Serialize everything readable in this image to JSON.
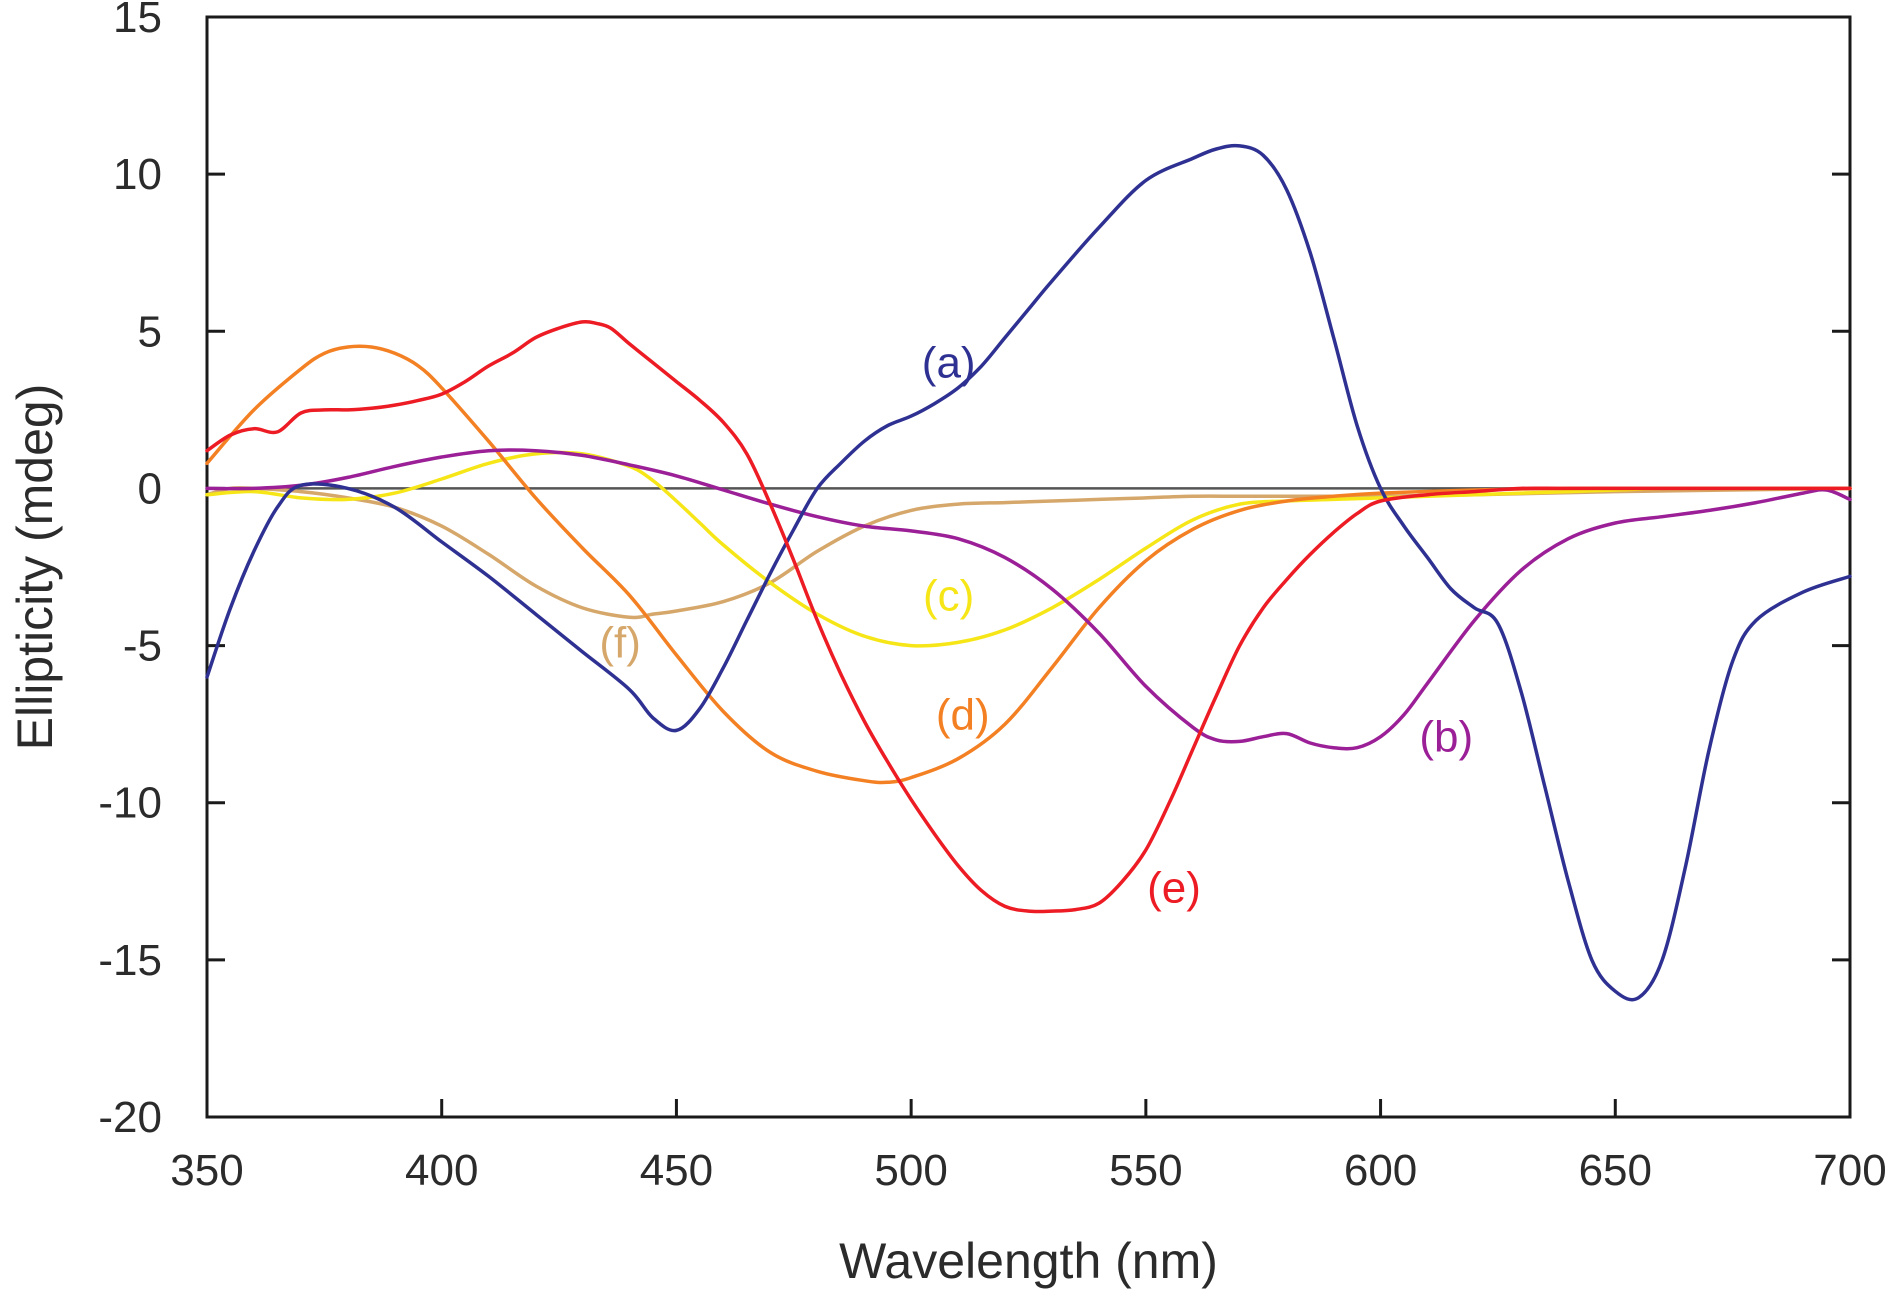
{
  "chart_data": {
    "type": "line",
    "title": "",
    "xlabel": "Wavelength (nm)",
    "ylabel": "Ellipticity (mdeg)",
    "xlim": [
      350,
      700
    ],
    "ylim": [
      -20,
      15
    ],
    "xticks": [
      350,
      400,
      450,
      500,
      550,
      600,
      650,
      700
    ],
    "yticks": [
      15,
      10,
      5,
      0,
      -5,
      -10,
      -15,
      -20
    ],
    "xtick_labels": [
      "350",
      "400",
      "450",
      "500",
      "550",
      "600",
      "650",
      "700"
    ],
    "ytick_labels": [
      "15",
      "10",
      "5",
      "0",
      "-5",
      "-10",
      "-15",
      "-20"
    ],
    "zero_line": true,
    "grid": false,
    "series": [
      {
        "name": "(a)",
        "color": "#2e3192",
        "label_at": [
          508,
          4
        ],
        "x": [
          350,
          355,
          360,
          365,
          370,
          380,
          390,
          400,
          410,
          420,
          430,
          440,
          445,
          450,
          455,
          460,
          465,
          470,
          475,
          480,
          485,
          490,
          495,
          500,
          505,
          510,
          515,
          520,
          525,
          530,
          540,
          550,
          560,
          565,
          570,
          575,
          580,
          585,
          590,
          595,
          600,
          605,
          610,
          615,
          620,
          625,
          630,
          635,
          640,
          645,
          650,
          655,
          660,
          665,
          670,
          675,
          680,
          690,
          700
        ],
        "y": [
          -6,
          -3.8,
          -2,
          -0.6,
          0.1,
          0,
          -0.6,
          -1.7,
          -2.8,
          -4,
          -5.2,
          -6.4,
          -7.3,
          -7.7,
          -7,
          -5.7,
          -4.2,
          -2.7,
          -1.3,
          0,
          0.8,
          1.5,
          2,
          2.3,
          2.7,
          3.2,
          3.9,
          4.8,
          5.7,
          6.6,
          8.3,
          9.8,
          10.5,
          10.8,
          10.9,
          10.6,
          9.5,
          7.5,
          4.8,
          2,
          0,
          -1.2,
          -2.2,
          -3.2,
          -3.8,
          -4.3,
          -6.5,
          -9.5,
          -12.5,
          -15,
          -16,
          -16.2,
          -15,
          -12,
          -8.3,
          -5.5,
          -4.2,
          -3.3,
          -2.8
        ]
      },
      {
        "name": "(b)",
        "color": "#9b1f97",
        "label_at": [
          614,
          -7.9
        ],
        "x": [
          350,
          360,
          370,
          380,
          390,
          400,
          410,
          420,
          430,
          440,
          450,
          460,
          470,
          480,
          490,
          500,
          510,
          520,
          530,
          540,
          550,
          560,
          565,
          570,
          575,
          580,
          585,
          590,
          595,
          600,
          605,
          610,
          620,
          630,
          640,
          650,
          660,
          670,
          680,
          690,
          695,
          700
        ],
        "y": [
          0,
          0,
          0.1,
          0.35,
          0.7,
          1,
          1.2,
          1.2,
          1.05,
          0.75,
          0.4,
          -0.05,
          -0.5,
          -0.9,
          -1.2,
          -1.35,
          -1.6,
          -2.2,
          -3.2,
          -4.6,
          -6.3,
          -7.6,
          -8,
          -8.05,
          -7.9,
          -7.8,
          -8.1,
          -8.25,
          -8.25,
          -7.9,
          -7.2,
          -6.2,
          -4.2,
          -2.6,
          -1.6,
          -1.1,
          -0.9,
          -0.7,
          -0.45,
          -0.15,
          -0.05,
          -0.35
        ]
      },
      {
        "name": "(c)",
        "color": "#f6e617",
        "label_at": [
          508,
          -3.4
        ],
        "x": [
          350,
          360,
          370,
          380,
          390,
          400,
          410,
          420,
          430,
          440,
          445,
          450,
          455,
          460,
          470,
          480,
          490,
          500,
          510,
          520,
          530,
          540,
          550,
          560,
          570,
          580,
          590,
          600,
          610,
          620,
          630,
          640,
          650,
          660,
          670,
          680,
          690,
          700
        ],
        "y": [
          -0.2,
          -0.1,
          -0.3,
          -0.35,
          -0.15,
          0.3,
          0.8,
          1.1,
          1.1,
          0.7,
          0.25,
          -0.4,
          -1.1,
          -1.8,
          -3,
          -4,
          -4.7,
          -5,
          -4.9,
          -4.5,
          -3.8,
          -2.9,
          -1.9,
          -1,
          -0.5,
          -0.4,
          -0.35,
          -0.3,
          -0.25,
          -0.2,
          -0.15,
          -0.1,
          -0.05,
          0,
          0,
          0,
          0,
          0
        ]
      },
      {
        "name": "(d)",
        "color": "#f48024",
        "label_at": [
          511,
          -7.2
        ],
        "x": [
          350,
          360,
          370,
          375,
          380,
          385,
          390,
          395,
          400,
          410,
          420,
          430,
          440,
          450,
          460,
          470,
          480,
          490,
          495,
          500,
          510,
          520,
          530,
          540,
          550,
          560,
          570,
          580,
          590,
          600,
          620,
          640,
          660,
          680,
          700
        ],
        "y": [
          0.8,
          2.5,
          3.8,
          4.3,
          4.5,
          4.5,
          4.3,
          3.9,
          3.2,
          1.5,
          -0.3,
          -1.9,
          -3.4,
          -5.3,
          -7.1,
          -8.4,
          -9,
          -9.3,
          -9.35,
          -9.2,
          -8.6,
          -7.5,
          -5.7,
          -3.8,
          -2.3,
          -1.3,
          -0.7,
          -0.4,
          -0.25,
          -0.15,
          -0.05,
          0,
          0,
          0,
          0
        ]
      },
      {
        "name": "(e)",
        "color": "#ed1c24",
        "label_at": [
          556,
          -12.7
        ],
        "x": [
          350,
          355,
          360,
          365,
          370,
          375,
          380,
          385,
          390,
          395,
          400,
          405,
          410,
          415,
          420,
          425,
          430,
          433,
          436,
          440,
          445,
          450,
          455,
          460,
          465,
          470,
          475,
          480,
          485,
          490,
          495,
          500,
          505,
          510,
          515,
          520,
          525,
          530,
          535,
          540,
          545,
          550,
          555,
          560,
          565,
          570,
          575,
          580,
          585,
          590,
          595,
          600,
          610,
          620,
          630,
          640,
          660,
          680,
          700
        ],
        "y": [
          1.2,
          1.7,
          1.9,
          1.8,
          2.4,
          2.5,
          2.5,
          2.55,
          2.65,
          2.8,
          3.0,
          3.4,
          3.9,
          4.3,
          4.8,
          5.1,
          5.3,
          5.25,
          5.1,
          4.6,
          4,
          3.4,
          2.8,
          2.1,
          1.1,
          -0.5,
          -2.3,
          -4.2,
          -5.9,
          -7.4,
          -8.7,
          -9.9,
          -11,
          -12,
          -12.8,
          -13.3,
          -13.45,
          -13.45,
          -13.4,
          -13.2,
          -12.5,
          -11.5,
          -10,
          -8.3,
          -6.6,
          -5,
          -3.8,
          -2.9,
          -2.1,
          -1.4,
          -0.8,
          -0.4,
          -0.2,
          -0.1,
          0,
          0,
          0,
          0,
          0
        ]
      },
      {
        "name": "(f)",
        "color": "#d6a76a",
        "label_at": [
          438,
          -4.9
        ],
        "x": [
          350,
          355,
          360,
          370,
          380,
          390,
          400,
          410,
          420,
          430,
          440,
          445,
          450,
          460,
          470,
          480,
          490,
          500,
          510,
          520,
          530,
          540,
          550,
          560,
          570,
          580,
          590,
          600,
          620,
          650,
          700
        ],
        "y": [
          -0.2,
          0,
          0,
          -0.1,
          -0.3,
          -0.6,
          -1.2,
          -2.1,
          -3.1,
          -3.8,
          -4.1,
          -4.0,
          -3.9,
          -3.6,
          -3.0,
          -2,
          -1.2,
          -0.7,
          -0.5,
          -0.45,
          -0.4,
          -0.35,
          -0.3,
          -0.25,
          -0.25,
          -0.25,
          -0.25,
          -0.25,
          -0.2,
          -0.1,
          0
        ]
      }
    ]
  }
}
